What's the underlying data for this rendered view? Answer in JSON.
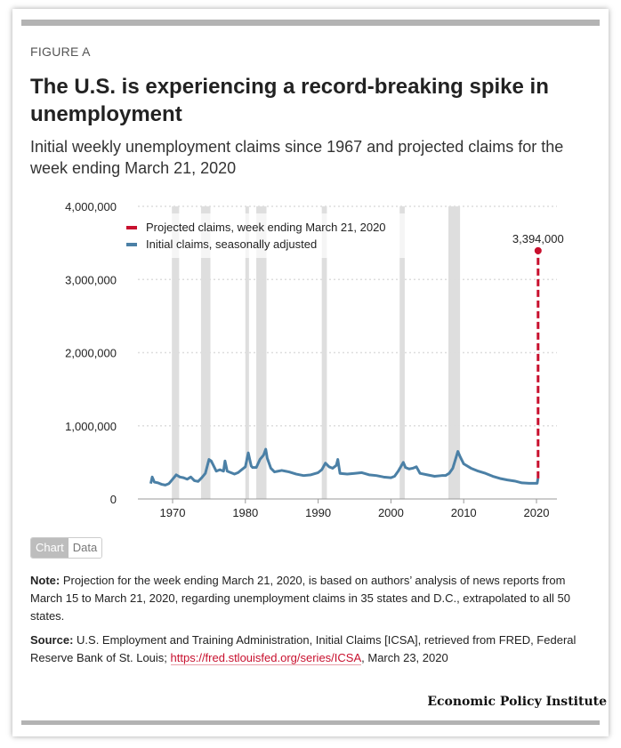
{
  "figure_label": "FIGURE A",
  "title": "The U.S. is experiencing a record-breaking spike in unemployment",
  "subtitle": "Initial weekly unemployment claims since 1967 and projected claims for the week ending March 21, 2020",
  "toggle": {
    "chart": "Chart",
    "data": "Data"
  },
  "note": {
    "label": "Note:",
    "text": " Projection for the week ending March 21, 2020, is based on authors’ analysis of news reports from March 15 to March 21, 2020, regarding unemployment claims in 35 states and D.C., extrapolated to all 50 states."
  },
  "source": {
    "label": "Source:",
    "text1": " U.S. Employment and Training Administration, Initial Claims [ICSA], retrieved from FRED, Federal Reserve Bank of St. Louis; ",
    "link": "https://fred.stlouisfed.org/series/ICSA",
    "text2": ", March 23, 2020"
  },
  "logo": "Economic Policy Institute",
  "colors": {
    "actual": "#4b80a6",
    "projected": "#c8102e",
    "recession": "#dedede"
  },
  "chart_data": {
    "type": "line",
    "ylim": [
      0,
      4000000
    ],
    "xlim": [
      1965.5,
      2022.8
    ],
    "yticks": [
      0,
      1000000,
      2000000,
      3000000,
      4000000
    ],
    "ytick_labels": [
      "0",
      "1,000,000",
      "2,000,000",
      "3,000,000",
      "4,000,000"
    ],
    "xticks": [
      1970,
      1980,
      1990,
      2000,
      2010,
      2020
    ],
    "xtick_labels": [
      "1970",
      "1980",
      "1990",
      "2000",
      "2010",
      "2020"
    ],
    "grid": true,
    "legend_position": "top-left",
    "recessions": [
      [
        1969.9,
        1970.9
      ],
      [
        1973.9,
        1975.2
      ],
      [
        1980.0,
        1980.5
      ],
      [
        1981.5,
        1982.9
      ],
      [
        1990.5,
        1991.2
      ],
      [
        2001.2,
        2001.9
      ],
      [
        2007.9,
        2009.5
      ]
    ],
    "series": [
      {
        "name": "Initial claims, seasonally adjusted",
        "style": "solid",
        "x": [
          1967,
          1967.2,
          1967.5,
          1968,
          1968.5,
          1969,
          1969.5,
          1970,
          1970.5,
          1971,
          1971.5,
          1972,
          1972.5,
          1973,
          1973.5,
          1974,
          1974.5,
          1975,
          1975.3,
          1975.8,
          1976,
          1976.5,
          1977,
          1977.2,
          1977.5,
          1978,
          1978.5,
          1979,
          1979.5,
          1980,
          1980.4,
          1980.8,
          1981,
          1981.5,
          1982,
          1982.5,
          1982.8,
          1983,
          1983.5,
          1984,
          1984.5,
          1985,
          1985.5,
          1986,
          1987,
          1988,
          1989,
          1990,
          1990.5,
          1991,
          1991.5,
          1992,
          1992.5,
          1992.7,
          1993,
          1994,
          1995,
          1996,
          1997,
          1998,
          1999,
          2000,
          2000.5,
          2001,
          2001.7,
          2002,
          2002.5,
          2003,
          2003.5,
          2004,
          2005,
          2006,
          2007,
          2007.5,
          2008,
          2008.5,
          2009.2,
          2009.5,
          2010,
          2011,
          2012,
          2013,
          2014,
          2015,
          2016,
          2017,
          2018,
          2019,
          2020.1,
          2020.2
        ],
        "values": [
          210000,
          300000,
          230000,
          220000,
          200000,
          190000,
          210000,
          270000,
          330000,
          300000,
          290000,
          270000,
          300000,
          250000,
          240000,
          290000,
          350000,
          540000,
          520000,
          420000,
          380000,
          400000,
          380000,
          520000,
          380000,
          360000,
          340000,
          360000,
          400000,
          440000,
          630000,
          450000,
          430000,
          430000,
          540000,
          600000,
          680000,
          560000,
          420000,
          370000,
          380000,
          390000,
          380000,
          370000,
          340000,
          320000,
          330000,
          360000,
          400000,
          490000,
          440000,
          420000,
          460000,
          540000,
          350000,
          340000,
          350000,
          360000,
          330000,
          320000,
          300000,
          290000,
          310000,
          380000,
          500000,
          430000,
          410000,
          420000,
          440000,
          350000,
          330000,
          310000,
          320000,
          320000,
          350000,
          420000,
          650000,
          580000,
          480000,
          420000,
          380000,
          350000,
          310000,
          280000,
          260000,
          245000,
          220000,
          215000,
          215000,
          281000
        ]
      },
      {
        "name": "Projected claims, week ending March 21, 2020",
        "style": "dashed",
        "x": [
          2020.22,
          2020.22
        ],
        "values": [
          281000,
          3394000
        ],
        "label": "3,394,000"
      }
    ]
  }
}
